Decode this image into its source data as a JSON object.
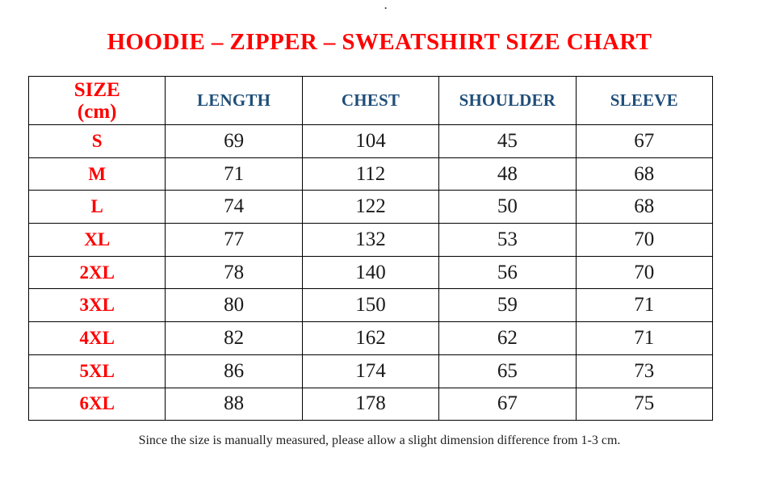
{
  "page": {
    "stray_mark": ".",
    "title": "HOODIE – ZIPPER – SWEATSHIRT SIZE CHART",
    "footnote": "Since the size is manually measured, please allow a slight dimension difference from 1-3 cm."
  },
  "chart_data": {
    "type": "table",
    "title": "HOODIE – ZIPPER – SWEATSHIRT SIZE CHART",
    "units": "cm",
    "columns": [
      "SIZE (cm)",
      "LENGTH",
      "CHEST",
      "SHOULDER",
      "SLEEVE"
    ],
    "header": {
      "size_line1": "SIZE",
      "size_line2": "(cm)",
      "measures": [
        "LENGTH",
        "CHEST",
        "SHOULDER",
        "SLEEVE"
      ]
    },
    "rows": [
      {
        "size": "S",
        "length": "69",
        "chest": "104",
        "shoulder": "45",
        "sleeve": "67"
      },
      {
        "size": "M",
        "length": "71",
        "chest": "112",
        "shoulder": "48",
        "sleeve": "68"
      },
      {
        "size": "L",
        "length": "74",
        "chest": "122",
        "shoulder": "50",
        "sleeve": "68"
      },
      {
        "size": "XL",
        "length": "77",
        "chest": "132",
        "shoulder": "53",
        "sleeve": "70"
      },
      {
        "size": "2XL",
        "length": "78",
        "chest": "140",
        "shoulder": "56",
        "sleeve": "70"
      },
      {
        "size": "3XL",
        "length": "80",
        "chest": "150",
        "shoulder": "59",
        "sleeve": "71"
      },
      {
        "size": "4XL",
        "length": "82",
        "chest": "162",
        "shoulder": "62",
        "sleeve": "71"
      },
      {
        "size": "5XL",
        "length": "86",
        "chest": "174",
        "shoulder": "65",
        "sleeve": "73"
      },
      {
        "size": "6XL",
        "length": "88",
        "chest": "178",
        "shoulder": "67",
        "sleeve": "75"
      }
    ]
  },
  "colors": {
    "title_red": "#FF0000",
    "header_blue": "#1F4E79",
    "value_black": "#1A1A1A",
    "border": "#000000",
    "background": "#FFFFFF"
  }
}
